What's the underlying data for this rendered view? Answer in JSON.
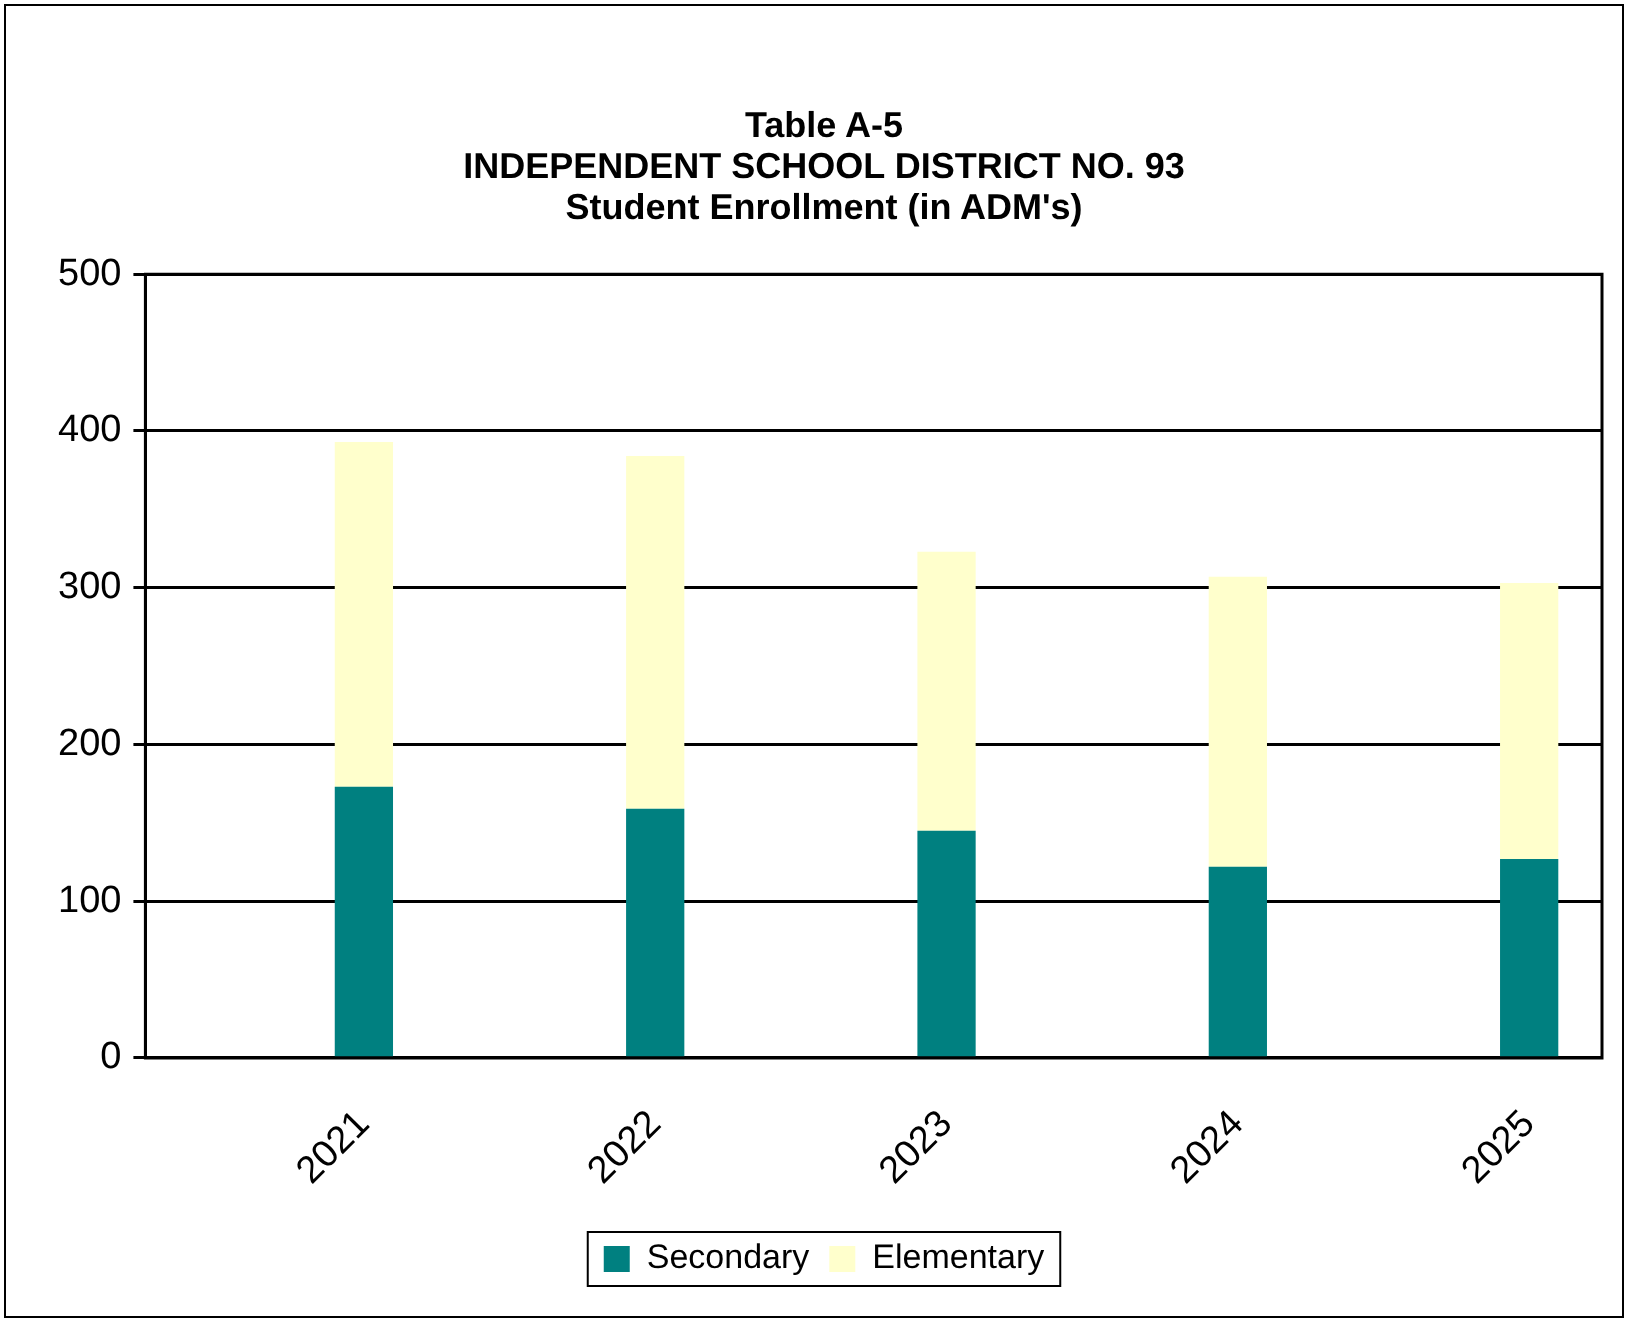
{
  "chart_data": {
    "type": "bar",
    "title": [
      "Table A-5",
      "INDEPENDENT SCHOOL DISTRICT NO. 93",
      "Student Enrollment (in ADM's)"
    ],
    "categories": [
      null,
      "2021",
      null,
      "2022",
      null,
      "2023",
      null,
      "2024",
      null,
      "2025"
    ],
    "stacked": true,
    "series": [
      {
        "name": "Secondary",
        "color": "#008080",
        "values": [
          null,
          173,
          null,
          159,
          null,
          145,
          null,
          122,
          null,
          127
        ]
      },
      {
        "name": "Elementary",
        "color": "#ffffcc",
        "values": [
          null,
          220,
          null,
          225,
          null,
          178,
          null,
          185,
          null,
          176
        ]
      }
    ],
    "ylim": [
      0,
      500
    ],
    "yticks": [
      0,
      100,
      200,
      300,
      400,
      500
    ],
    "grid": "y",
    "legend": "bottom"
  }
}
